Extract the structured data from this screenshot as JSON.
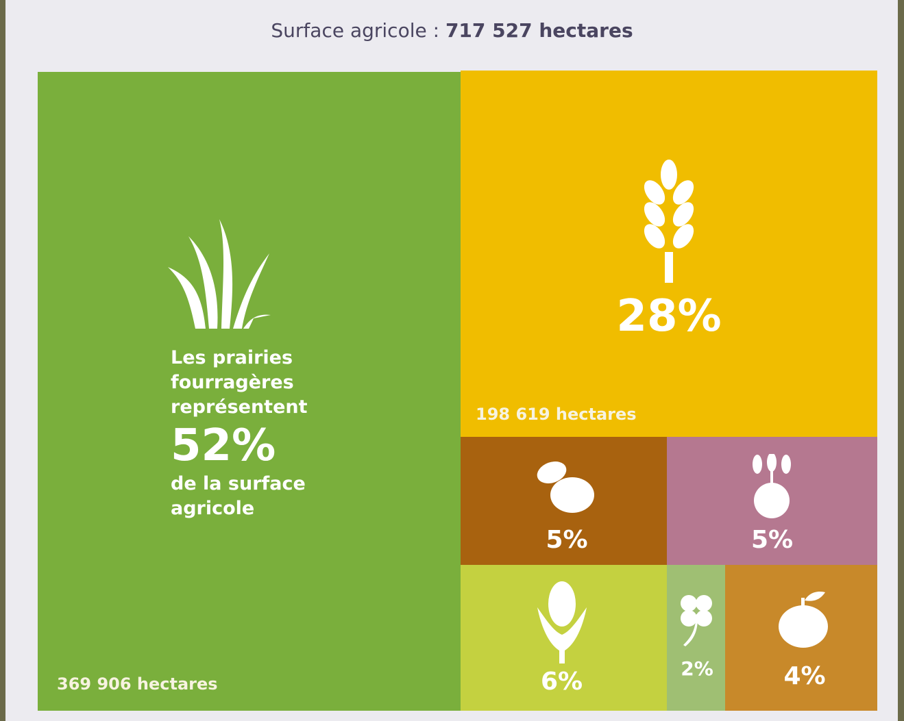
{
  "header": {
    "title": "Surface agricole :",
    "total": "717 527 hectares"
  },
  "tiles": [
    {
      "lines": [
        "Les prairies",
        "fourragères",
        "représentent"
      ],
      "percent": "52%",
      "after": [
        "de la surface",
        "agricole"
      ],
      "hectares": "369 906 hectares"
    },
    {
      "percent": "28%",
      "hectares": "198 619 hectares"
    },
    {
      "percent": "5%"
    },
    {
      "percent": "5%"
    },
    {
      "percent": "6%"
    },
    {
      "percent": "2%"
    },
    {
      "percent": "4%"
    }
  ]
}
